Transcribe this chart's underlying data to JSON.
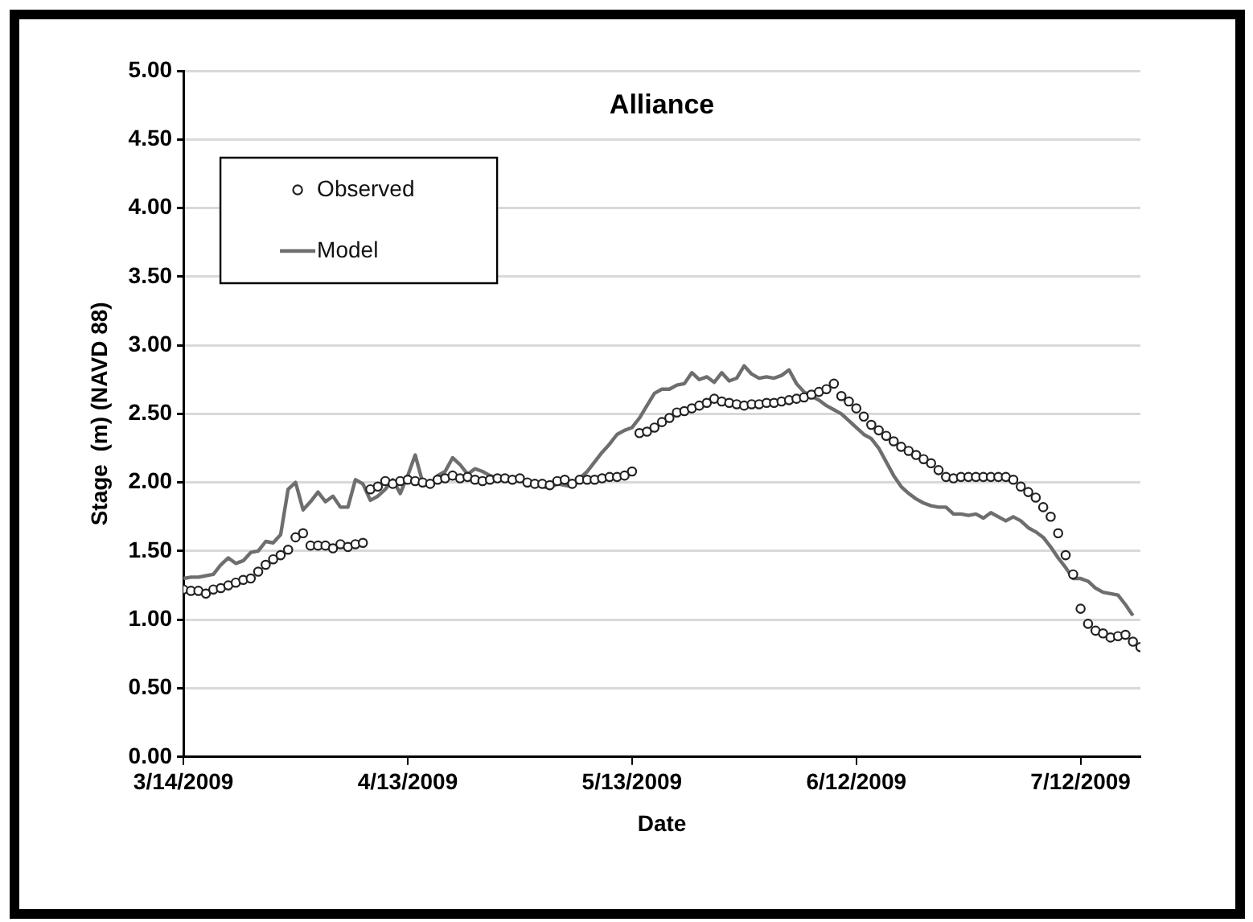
{
  "chart_data": {
    "type": "line",
    "title": "Alliance",
    "xlabel": "Date",
    "ylabel": "Stage  (m) (NAVD 88)",
    "x": [
      "2009-03-14",
      "2009-03-15",
      "2009-03-16",
      "2009-03-17",
      "2009-03-18",
      "2009-03-19",
      "2009-03-20",
      "2009-03-21",
      "2009-03-22",
      "2009-03-23",
      "2009-03-24",
      "2009-03-25",
      "2009-03-26",
      "2009-03-27",
      "2009-03-28",
      "2009-03-29",
      "2009-03-30",
      "2009-03-31",
      "2009-04-01",
      "2009-04-02",
      "2009-04-03",
      "2009-04-04",
      "2009-04-05",
      "2009-04-06",
      "2009-04-07",
      "2009-04-08",
      "2009-04-09",
      "2009-04-10",
      "2009-04-11",
      "2009-04-12",
      "2009-04-13",
      "2009-04-14",
      "2009-04-15",
      "2009-04-16",
      "2009-04-17",
      "2009-04-18",
      "2009-04-19",
      "2009-04-20",
      "2009-04-21",
      "2009-04-22",
      "2009-04-23",
      "2009-04-24",
      "2009-04-25",
      "2009-04-26",
      "2009-04-27",
      "2009-04-28",
      "2009-04-29",
      "2009-04-30",
      "2009-05-01",
      "2009-05-02",
      "2009-05-03",
      "2009-05-04",
      "2009-05-05",
      "2009-05-06",
      "2009-05-07",
      "2009-05-08",
      "2009-05-09",
      "2009-05-10",
      "2009-05-11",
      "2009-05-12",
      "2009-05-13",
      "2009-05-14",
      "2009-05-15",
      "2009-05-16",
      "2009-05-17",
      "2009-05-18",
      "2009-05-19",
      "2009-05-20",
      "2009-05-21",
      "2009-05-22",
      "2009-05-23",
      "2009-05-24",
      "2009-05-25",
      "2009-05-26",
      "2009-05-27",
      "2009-05-28",
      "2009-05-29",
      "2009-05-30",
      "2009-05-31",
      "2009-06-01",
      "2009-06-02",
      "2009-06-03",
      "2009-06-04",
      "2009-06-05",
      "2009-06-06",
      "2009-06-07",
      "2009-06-08",
      "2009-06-09",
      "2009-06-10",
      "2009-06-11",
      "2009-06-12",
      "2009-06-13",
      "2009-06-14",
      "2009-06-15",
      "2009-06-16",
      "2009-06-17",
      "2009-06-18",
      "2009-06-19",
      "2009-06-20",
      "2009-06-21",
      "2009-06-22",
      "2009-06-23",
      "2009-06-24",
      "2009-06-25",
      "2009-06-26",
      "2009-06-27",
      "2009-06-28",
      "2009-06-29",
      "2009-06-30",
      "2009-07-01",
      "2009-07-02",
      "2009-07-03",
      "2009-07-04",
      "2009-07-05",
      "2009-07-06",
      "2009-07-07",
      "2009-07-08",
      "2009-07-09",
      "2009-07-10",
      "2009-07-11",
      "2009-07-12",
      "2009-07-13",
      "2009-07-14",
      "2009-07-15",
      "2009-07-16",
      "2009-07-17",
      "2009-07-18",
      "2009-07-19",
      "2009-07-20"
    ],
    "series": [
      {
        "name": "Observed",
        "type": "scatter",
        "marker": "circle",
        "color": "#222222",
        "values": [
          1.22,
          1.21,
          1.21,
          1.19,
          1.22,
          1.23,
          1.25,
          1.27,
          1.29,
          1.3,
          1.35,
          1.4,
          1.44,
          1.47,
          1.51,
          1.6,
          1.63,
          1.54,
          1.54,
          1.54,
          1.52,
          1.55,
          1.53,
          1.55,
          1.56,
          1.95,
          1.97,
          2.01,
          1.99,
          2.01,
          2.02,
          2.01,
          2.0,
          1.99,
          2.02,
          2.03,
          2.05,
          2.03,
          2.04,
          2.02,
          2.01,
          2.02,
          2.03,
          2.03,
          2.02,
          2.03,
          2.0,
          1.99,
          1.99,
          1.98,
          2.01,
          2.02,
          1.99,
          2.02,
          2.02,
          2.02,
          2.03,
          2.04,
          2.04,
          2.05,
          2.08,
          2.36,
          2.37,
          2.4,
          2.44,
          2.47,
          2.51,
          2.52,
          2.54,
          2.56,
          2.58,
          2.61,
          2.59,
          2.58,
          2.57,
          2.56,
          2.57,
          2.57,
          2.58,
          2.58,
          2.59,
          2.6,
          2.61,
          2.62,
          2.64,
          2.66,
          2.68,
          2.72,
          2.63,
          2.59,
          2.54,
          2.48,
          2.42,
          2.38,
          2.34,
          2.3,
          2.26,
          2.23,
          2.2,
          2.17,
          2.14,
          2.09,
          2.04,
          2.03,
          2.04,
          2.04,
          2.04,
          2.04,
          2.04,
          2.04,
          2.04,
          2.02,
          1.97,
          1.93,
          1.89,
          1.82,
          1.75,
          1.63,
          1.47,
          1.33,
          1.08,
          0.97,
          0.92,
          0.9,
          0.87,
          0.88,
          0.89,
          0.84,
          0.8
        ]
      },
      {
        "name": "Model",
        "type": "line",
        "marker": "none",
        "line_style": "solid",
        "color": "#6e6e6e",
        "values": [
          1.3,
          1.31,
          1.31,
          1.32,
          1.33,
          1.4,
          1.45,
          1.41,
          1.43,
          1.49,
          1.5,
          1.57,
          1.56,
          1.62,
          1.95,
          2.0,
          1.8,
          1.86,
          1.93,
          1.86,
          1.9,
          1.82,
          1.82,
          2.02,
          1.99,
          1.87,
          1.9,
          1.95,
          2.02,
          1.92,
          2.05,
          2.2,
          2.0,
          1.97,
          2.05,
          2.08,
          2.18,
          2.13,
          2.06,
          2.1,
          2.08,
          2.05,
          2.03,
          2.02,
          2.02,
          2.02,
          2.0,
          1.98,
          1.97,
          1.96,
          1.99,
          1.98,
          1.97,
          2.03,
          2.08,
          2.15,
          2.22,
          2.28,
          2.35,
          2.38,
          2.4,
          2.47,
          2.56,
          2.65,
          2.68,
          2.68,
          2.71,
          2.72,
          2.8,
          2.75,
          2.77,
          2.73,
          2.8,
          2.74,
          2.76,
          2.85,
          2.79,
          2.76,
          2.77,
          2.76,
          2.78,
          2.82,
          2.72,
          2.66,
          2.63,
          2.6,
          2.56,
          2.53,
          2.5,
          2.45,
          2.4,
          2.35,
          2.32,
          2.25,
          2.15,
          2.05,
          1.97,
          1.92,
          1.88,
          1.85,
          1.83,
          1.82,
          1.82,
          1.77,
          1.77,
          1.76,
          1.77,
          1.74,
          1.78,
          1.75,
          1.72,
          1.75,
          1.72,
          1.67,
          1.64,
          1.6,
          1.53,
          1.45,
          1.38,
          1.3,
          1.3,
          1.28,
          1.23,
          1.2,
          1.19,
          1.18,
          1.11,
          1.03,
          null
        ]
      }
    ],
    "xlim": [
      "2009-03-14",
      "2009-07-20"
    ],
    "xticks": [
      {
        "value": "2009-03-14",
        "label": "3/14/2009"
      },
      {
        "value": "2009-04-13",
        "label": "4/13/2009"
      },
      {
        "value": "2009-05-13",
        "label": "5/13/2009"
      },
      {
        "value": "2009-06-12",
        "label": "6/12/2009"
      },
      {
        "value": "2009-07-12",
        "label": "7/12/2009"
      }
    ],
    "ylim": [
      0,
      5
    ],
    "yticks": [
      {
        "value": 0,
        "label": "0.00"
      },
      {
        "value": 0.5,
        "label": "0.50"
      },
      {
        "value": 1,
        "label": "1.00"
      },
      {
        "value": 1.5,
        "label": "1.50"
      },
      {
        "value": 2,
        "label": "2.00"
      },
      {
        "value": 2.5,
        "label": "2.50"
      },
      {
        "value": 3,
        "label": "3.00"
      },
      {
        "value": 3.5,
        "label": "3.50"
      },
      {
        "value": 4,
        "label": "4.00"
      },
      {
        "value": 4.5,
        "label": "4.50"
      },
      {
        "value": 5,
        "label": "5.00"
      }
    ],
    "grid": "y",
    "legend": "top left"
  }
}
